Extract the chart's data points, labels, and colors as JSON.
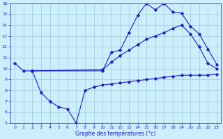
{
  "xlabel": "Graphe des températures (°c)",
  "bg_color": "#cceeff",
  "line_color": "#1a1acc",
  "grid_color": "#99cccc",
  "xlim": [
    -0.5,
    23.5
  ],
  "ylim": [
    5,
    16
  ],
  "xticks": [
    0,
    1,
    2,
    3,
    4,
    5,
    6,
    7,
    8,
    9,
    10,
    11,
    12,
    13,
    14,
    15,
    16,
    17,
    18,
    19,
    20,
    21,
    22,
    23
  ],
  "yticks": [
    5,
    6,
    7,
    8,
    9,
    10,
    11,
    12,
    13,
    14,
    15,
    16
  ],
  "line1_x": [
    0,
    1,
    2,
    10,
    11,
    12,
    13,
    14,
    15,
    16,
    17,
    18,
    19,
    20,
    21,
    22,
    23
  ],
  "line1_y": [
    10.5,
    9.8,
    9.8,
    9.8,
    11.5,
    11.7,
    13.3,
    14.9,
    16.0,
    15.4,
    16.0,
    15.2,
    15.1,
    13.9,
    13.2,
    11.8,
    10.4
  ],
  "line2_x": [
    2,
    10,
    11,
    12,
    13,
    14,
    15,
    16,
    17,
    18,
    19,
    20,
    21,
    22,
    23
  ],
  "line2_y": [
    9.8,
    9.9,
    10.6,
    11.2,
    11.7,
    12.2,
    12.7,
    13.0,
    13.3,
    13.7,
    14.0,
    13.2,
    12.0,
    10.5,
    10.0
  ],
  "line3_x": [
    2,
    3,
    4,
    5,
    6,
    7,
    8,
    9,
    10,
    11,
    12,
    13,
    14,
    15,
    16,
    17,
    18,
    19,
    20,
    21,
    22,
    23
  ],
  "line3_y": [
    9.8,
    7.8,
    7.0,
    6.5,
    6.3,
    5.0,
    8.0,
    8.3,
    8.5,
    8.6,
    8.7,
    8.8,
    8.9,
    9.0,
    9.1,
    9.2,
    9.3,
    9.4,
    9.4,
    9.4,
    9.4,
    9.5
  ]
}
